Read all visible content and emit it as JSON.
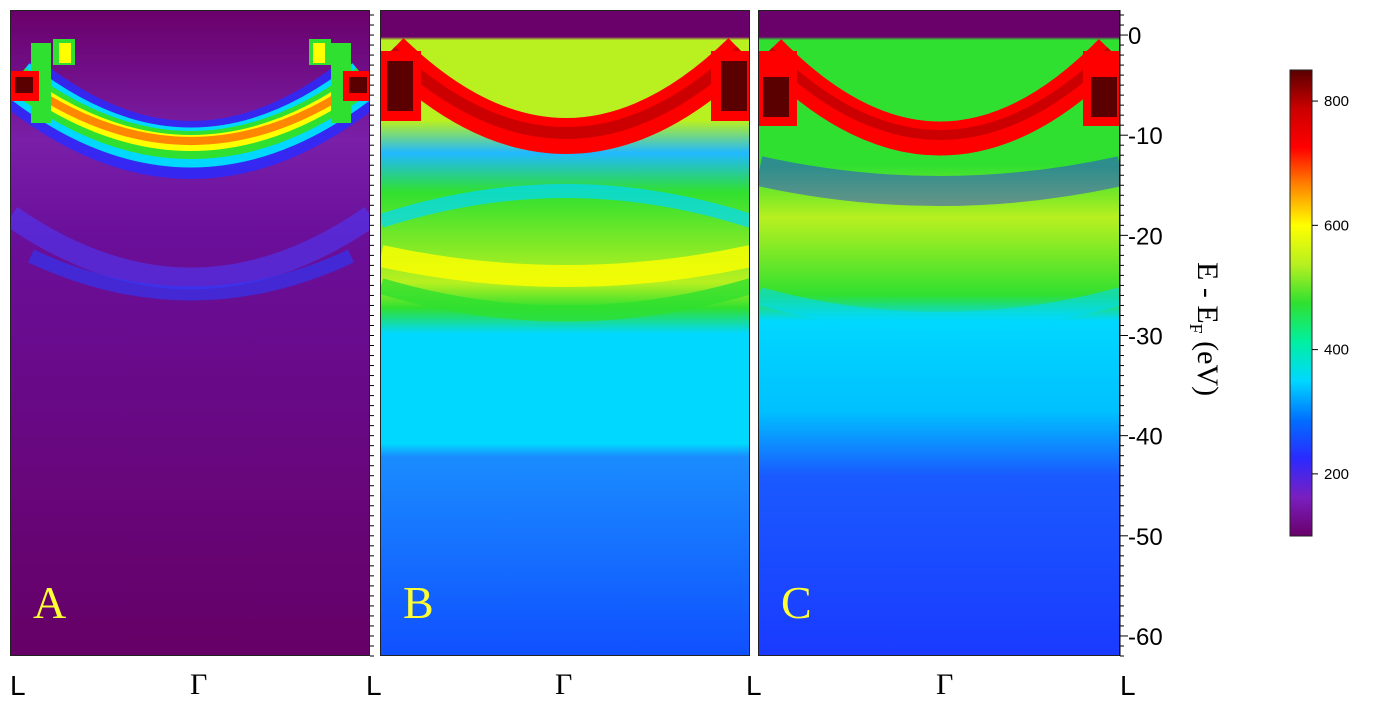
{
  "chart_data": {
    "type": "heatmap",
    "panels": [
      {
        "label": "A"
      },
      {
        "label": "B"
      },
      {
        "label": "C"
      }
    ],
    "x_ticks": [
      "L",
      "Γ",
      "L"
    ],
    "y_axis": {
      "label_main": "E - E",
      "label_sub": "F",
      "label_unit": " (eV)",
      "range": [
        -62,
        2.5
      ],
      "ticks": [
        0,
        -10,
        -20,
        -30,
        -40,
        -50,
        -60
      ],
      "tick_labels": [
        "0",
        "-10",
        "-20",
        "-30",
        "-40",
        "-50",
        "-60"
      ]
    },
    "colorbar": {
      "range": [
        100,
        850
      ],
      "ticks": [
        200,
        400,
        600,
        800
      ],
      "tick_labels": [
        "200",
        "400",
        "600",
        "800"
      ],
      "colors": [
        "#6a006a",
        "#7a1fc0",
        "#2a2aff",
        "#0070ff",
        "#00d8ff",
        "#00f0a0",
        "#30e030",
        "#b8f020",
        "#ffff00",
        "#ff8800",
        "#ff0000",
        "#cc0000",
        "#5a0000"
      ]
    }
  }
}
